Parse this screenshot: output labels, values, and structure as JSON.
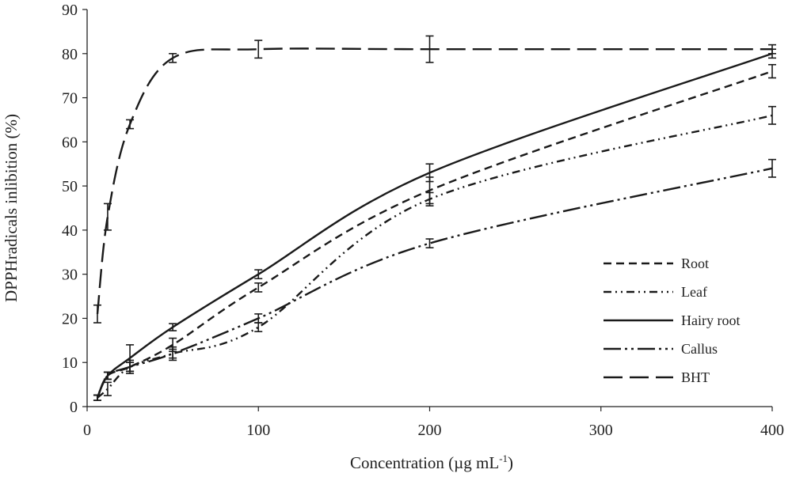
{
  "chart_data": {
    "type": "line",
    "title": "",
    "xlabel": "Concentration (µg mL",
    "xlabel_superscript": "-1",
    "xlabel_close": ")",
    "ylabel": "DPPHradicals inlibition (%)",
    "xlim": [
      0,
      400
    ],
    "ylim": [
      0,
      90
    ],
    "x_ticks": [
      "0",
      "100",
      "200",
      "300",
      "400"
    ],
    "y_ticks": [
      "0",
      "10",
      "20",
      "30",
      "40",
      "50",
      "60",
      "70",
      "80",
      "90"
    ],
    "grid": false,
    "legend_position": "bottom-right",
    "series": [
      {
        "name": "Root",
        "dash": "10,6",
        "x": [
          6,
          12,
          25,
          50,
          100,
          200,
          400
        ],
        "y": [
          2,
          7,
          9,
          14,
          27,
          49,
          76
        ],
        "err": [
          0.6,
          0.8,
          1.5,
          1.5,
          1,
          3,
          1.5
        ]
      },
      {
        "name": "Leaf",
        "dash": "10,5,2,5,2,5",
        "x": [
          6,
          12,
          25,
          50,
          100,
          200,
          400
        ],
        "y": [
          2,
          4,
          9,
          12,
          18,
          47,
          66
        ],
        "err": [
          0.6,
          1.5,
          1,
          1.5,
          1,
          1.5,
          2
        ]
      },
      {
        "name": "Hairy root",
        "dash": "",
        "x": [
          6,
          12,
          25,
          50,
          100,
          200,
          400
        ],
        "y": [
          2,
          7,
          11,
          18,
          30,
          53,
          80
        ],
        "err": [
          0.6,
          0.8,
          3,
          0.8,
          1,
          2,
          1
        ]
      },
      {
        "name": "Callus",
        "dash": "22,5,3,5,3,5",
        "x": [
          6,
          12,
          25,
          50,
          100,
          200,
          400
        ],
        "y": [
          2,
          7,
          9,
          12,
          20,
          37,
          54
        ],
        "err": [
          0.6,
          0.8,
          1,
          1,
          1,
          1,
          2
        ]
      },
      {
        "name": "BHT",
        "dash": "24,9",
        "x": [
          6,
          12,
          25,
          50,
          100,
          200,
          400
        ],
        "y": [
          21,
          43,
          64,
          79,
          81,
          81,
          81
        ],
        "err": [
          2,
          3,
          1,
          1,
          2,
          3,
          1
        ]
      }
    ]
  }
}
